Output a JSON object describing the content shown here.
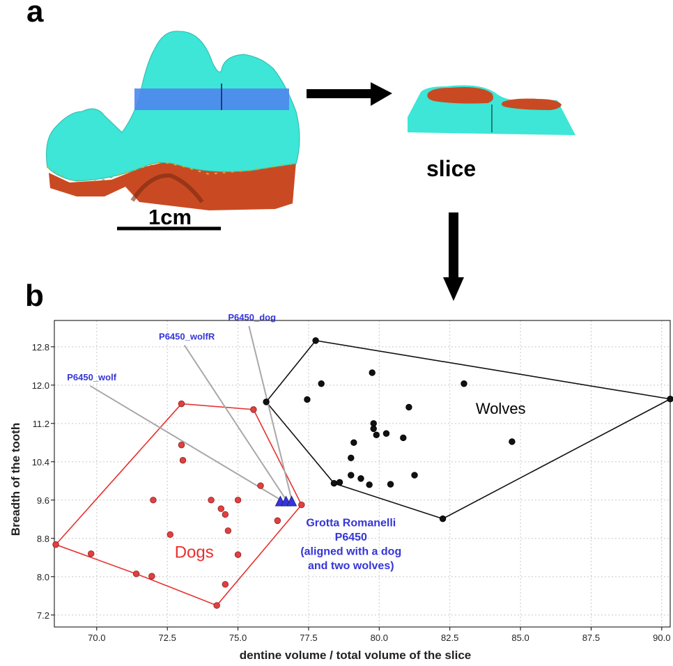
{
  "panel_a": {
    "label": "a",
    "slice_label": "slice",
    "scale_label": "1cm"
  },
  "panel_b": {
    "label": "b"
  },
  "colors": {
    "tooth_enamel": "#3de6d6",
    "tooth_dentine": "#c94a22",
    "slice_band": "#4f86ee",
    "dogs": "#e8302e",
    "wolves": "#000000",
    "specimen": "#3535d8",
    "leader": "#a8a8a8"
  },
  "chart_data": {
    "type": "scatter",
    "xlabel": "dentine volume / total volume of the slice",
    "ylabel": "Breadth of the tooth",
    "xlim": [
      68.5,
      90.3
    ],
    "ylim": [
      6.95,
      13.35
    ],
    "xticks": [
      "70.0",
      "72.5",
      "75.0",
      "77.5",
      "80.0",
      "82.5",
      "85.0",
      "87.5",
      "90.0"
    ],
    "xtick_values": [
      70,
      72.5,
      75,
      77.5,
      80,
      82.5,
      85,
      87.5,
      90
    ],
    "yticks": [
      "7.2",
      "8.0",
      "8.8",
      "9.6",
      "10.4",
      "11.2",
      "12.0",
      "12.8"
    ],
    "ytick_values": [
      7.2,
      8.0,
      8.8,
      9.6,
      10.4,
      11.2,
      12.0,
      12.8
    ],
    "grid": true,
    "groups": [
      {
        "name": "Dogs",
        "color": "#e8302e",
        "points": [
          [
            73.0,
            11.61
          ],
          [
            75.55,
            11.49
          ],
          [
            73.0,
            10.75
          ],
          [
            73.05,
            10.43
          ],
          [
            75.8,
            9.9
          ],
          [
            72.0,
            9.6
          ],
          [
            74.05,
            9.6
          ],
          [
            75.0,
            9.6
          ],
          [
            74.4,
            9.42
          ],
          [
            74.55,
            9.3
          ],
          [
            77.25,
            9.5
          ],
          [
            76.4,
            9.17
          ],
          [
            74.65,
            8.96
          ],
          [
            72.6,
            8.88
          ],
          [
            68.55,
            8.67
          ],
          [
            69.8,
            8.48
          ],
          [
            75.0,
            8.46
          ],
          [
            71.4,
            8.06
          ],
          [
            71.95,
            8.01
          ],
          [
            74.55,
            7.84
          ],
          [
            74.25,
            7.4
          ]
        ],
        "hull": [
          [
            68.55,
            8.67
          ],
          [
            73.0,
            11.61
          ],
          [
            75.55,
            11.49
          ],
          [
            77.25,
            9.5
          ],
          [
            74.25,
            7.4
          ],
          [
            71.4,
            8.06
          ]
        ]
      },
      {
        "name": "Wolves",
        "color": "#000000",
        "points": [
          [
            77.75,
            12.93
          ],
          [
            79.75,
            12.26
          ],
          [
            77.95,
            12.03
          ],
          [
            83.0,
            12.03
          ],
          [
            77.45,
            11.7
          ],
          [
            76.0,
            11.65
          ],
          [
            81.05,
            11.54
          ],
          [
            90.3,
            11.71
          ],
          [
            79.8,
            11.2
          ],
          [
            79.8,
            11.09
          ],
          [
            79.9,
            10.96
          ],
          [
            80.25,
            10.99
          ],
          [
            80.85,
            10.9
          ],
          [
            84.7,
            10.82
          ],
          [
            79.1,
            10.8
          ],
          [
            79.0,
            10.48
          ],
          [
            79.0,
            10.12
          ],
          [
            79.35,
            10.05
          ],
          [
            81.25,
            10.12
          ],
          [
            78.4,
            9.95
          ],
          [
            78.6,
            9.97
          ],
          [
            79.65,
            9.92
          ],
          [
            80.4,
            9.93
          ],
          [
            82.25,
            9.21
          ]
        ],
        "hull": [
          [
            76.0,
            11.65
          ],
          [
            77.75,
            12.93
          ],
          [
            90.3,
            11.71
          ],
          [
            82.25,
            9.21
          ],
          [
            78.4,
            9.95
          ]
        ]
      }
    ],
    "specimens": [
      {
        "label": "P6450_wolf",
        "point": [
          76.5,
          9.55
        ],
        "label_pos": [
          68.95,
          12.1
        ]
      },
      {
        "label": "P6450_wolfR",
        "point": [
          76.7,
          9.55
        ],
        "label_pos": [
          72.2,
          12.95
        ]
      },
      {
        "label": "P6450_dog",
        "point": [
          76.9,
          9.55
        ],
        "label_pos": [
          74.65,
          13.35
        ]
      }
    ],
    "annotations": [
      {
        "text": "Wolves",
        "pos": [
          84.3,
          11.4
        ],
        "color": "#000000",
        "size": 22
      },
      {
        "text": "Dogs",
        "pos": [
          73.45,
          8.4
        ],
        "color": "#e8302e",
        "size": 24
      }
    ],
    "specimen_caption": [
      "Grotta Romanelli",
      "P6450",
      "(aligned with a dog",
      "and two wolves)"
    ]
  }
}
